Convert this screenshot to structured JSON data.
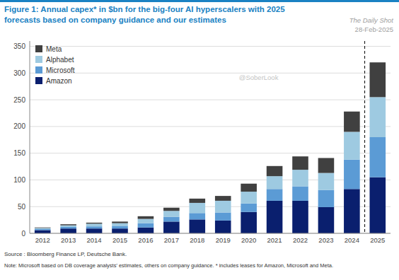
{
  "chart_data": {
    "type": "bar",
    "stacked": true,
    "title": "Figure 1: Annual capex* in $bn for the big-four AI hyperscalers with 2025",
    "subtitle": "forecasts based on company guidance and our estimates",
    "annotations": [
      "The Daily Shot",
      "28-Feb-2025",
      "@SoberLook",
      "Source : Bloomberg Finance LP, Deutsche Bank.",
      "Note: Microsoft based on DB coverage analysts' estimates, others on company guidance. * includes leases for Amazon, Microsoft and Meta."
    ],
    "categories": [
      "2012",
      "2013",
      "2014",
      "2015",
      "2016",
      "2017",
      "2018",
      "2019",
      "2020",
      "2021",
      "2022",
      "2023",
      "2024",
      "2025"
    ],
    "series": [
      {
        "name": "Amazon",
        "color": "#0a1f6e",
        "values": [
          6,
          9,
          9,
          9,
          11,
          22,
          26,
          24,
          40,
          61,
          61,
          49,
          83,
          105
        ]
      },
      {
        "name": "Microsoft",
        "color": "#5b9bd5",
        "values": [
          2,
          3,
          4,
          5,
          8,
          9,
          12,
          15,
          16,
          22,
          27,
          32,
          55,
          75
        ]
      },
      {
        "name": "Alphabet",
        "color": "#9ecae1",
        "values": [
          2,
          3,
          5,
          5,
          8,
          11,
          19,
          22,
          22,
          24,
          31,
          32,
          52,
          75
        ]
      },
      {
        "name": "Meta",
        "color": "#404040",
        "values": [
          1,
          2,
          2,
          3,
          5,
          6,
          8,
          9,
          15,
          19,
          25,
          28,
          38,
          65
        ]
      }
    ],
    "ylim": [
      0,
      360
    ],
    "yticks": [
      0,
      50,
      100,
      150,
      200,
      250,
      300,
      350
    ],
    "grid": true,
    "legend": "upper left"
  }
}
